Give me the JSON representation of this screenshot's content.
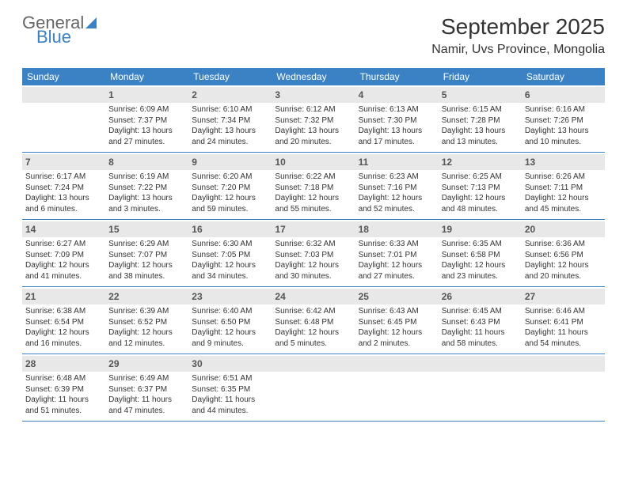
{
  "brand": {
    "name_a": "General",
    "name_b": "Blue"
  },
  "title": "September 2025",
  "location": "Namir, Uvs Province, Mongolia",
  "colors": {
    "accent": "#3b82c4",
    "header_text": "#ffffff",
    "daybar": "#e8e8e8",
    "text": "#333333"
  },
  "day_names": [
    "Sunday",
    "Monday",
    "Tuesday",
    "Wednesday",
    "Thursday",
    "Friday",
    "Saturday"
  ],
  "weeks": [
    [
      null,
      {
        "n": "1",
        "sr": "Sunrise: 6:09 AM",
        "ss": "Sunset: 7:37 PM",
        "dl": "Daylight: 13 hours and 27 minutes."
      },
      {
        "n": "2",
        "sr": "Sunrise: 6:10 AM",
        "ss": "Sunset: 7:34 PM",
        "dl": "Daylight: 13 hours and 24 minutes."
      },
      {
        "n": "3",
        "sr": "Sunrise: 6:12 AM",
        "ss": "Sunset: 7:32 PM",
        "dl": "Daylight: 13 hours and 20 minutes."
      },
      {
        "n": "4",
        "sr": "Sunrise: 6:13 AM",
        "ss": "Sunset: 7:30 PM",
        "dl": "Daylight: 13 hours and 17 minutes."
      },
      {
        "n": "5",
        "sr": "Sunrise: 6:15 AM",
        "ss": "Sunset: 7:28 PM",
        "dl": "Daylight: 13 hours and 13 minutes."
      },
      {
        "n": "6",
        "sr": "Sunrise: 6:16 AM",
        "ss": "Sunset: 7:26 PM",
        "dl": "Daylight: 13 hours and 10 minutes."
      }
    ],
    [
      {
        "n": "7",
        "sr": "Sunrise: 6:17 AM",
        "ss": "Sunset: 7:24 PM",
        "dl": "Daylight: 13 hours and 6 minutes."
      },
      {
        "n": "8",
        "sr": "Sunrise: 6:19 AM",
        "ss": "Sunset: 7:22 PM",
        "dl": "Daylight: 13 hours and 3 minutes."
      },
      {
        "n": "9",
        "sr": "Sunrise: 6:20 AM",
        "ss": "Sunset: 7:20 PM",
        "dl": "Daylight: 12 hours and 59 minutes."
      },
      {
        "n": "10",
        "sr": "Sunrise: 6:22 AM",
        "ss": "Sunset: 7:18 PM",
        "dl": "Daylight: 12 hours and 55 minutes."
      },
      {
        "n": "11",
        "sr": "Sunrise: 6:23 AM",
        "ss": "Sunset: 7:16 PM",
        "dl": "Daylight: 12 hours and 52 minutes."
      },
      {
        "n": "12",
        "sr": "Sunrise: 6:25 AM",
        "ss": "Sunset: 7:13 PM",
        "dl": "Daylight: 12 hours and 48 minutes."
      },
      {
        "n": "13",
        "sr": "Sunrise: 6:26 AM",
        "ss": "Sunset: 7:11 PM",
        "dl": "Daylight: 12 hours and 45 minutes."
      }
    ],
    [
      {
        "n": "14",
        "sr": "Sunrise: 6:27 AM",
        "ss": "Sunset: 7:09 PM",
        "dl": "Daylight: 12 hours and 41 minutes."
      },
      {
        "n": "15",
        "sr": "Sunrise: 6:29 AM",
        "ss": "Sunset: 7:07 PM",
        "dl": "Daylight: 12 hours and 38 minutes."
      },
      {
        "n": "16",
        "sr": "Sunrise: 6:30 AM",
        "ss": "Sunset: 7:05 PM",
        "dl": "Daylight: 12 hours and 34 minutes."
      },
      {
        "n": "17",
        "sr": "Sunrise: 6:32 AM",
        "ss": "Sunset: 7:03 PM",
        "dl": "Daylight: 12 hours and 30 minutes."
      },
      {
        "n": "18",
        "sr": "Sunrise: 6:33 AM",
        "ss": "Sunset: 7:01 PM",
        "dl": "Daylight: 12 hours and 27 minutes."
      },
      {
        "n": "19",
        "sr": "Sunrise: 6:35 AM",
        "ss": "Sunset: 6:58 PM",
        "dl": "Daylight: 12 hours and 23 minutes."
      },
      {
        "n": "20",
        "sr": "Sunrise: 6:36 AM",
        "ss": "Sunset: 6:56 PM",
        "dl": "Daylight: 12 hours and 20 minutes."
      }
    ],
    [
      {
        "n": "21",
        "sr": "Sunrise: 6:38 AM",
        "ss": "Sunset: 6:54 PM",
        "dl": "Daylight: 12 hours and 16 minutes."
      },
      {
        "n": "22",
        "sr": "Sunrise: 6:39 AM",
        "ss": "Sunset: 6:52 PM",
        "dl": "Daylight: 12 hours and 12 minutes."
      },
      {
        "n": "23",
        "sr": "Sunrise: 6:40 AM",
        "ss": "Sunset: 6:50 PM",
        "dl": "Daylight: 12 hours and 9 minutes."
      },
      {
        "n": "24",
        "sr": "Sunrise: 6:42 AM",
        "ss": "Sunset: 6:48 PM",
        "dl": "Daylight: 12 hours and 5 minutes."
      },
      {
        "n": "25",
        "sr": "Sunrise: 6:43 AM",
        "ss": "Sunset: 6:45 PM",
        "dl": "Daylight: 12 hours and 2 minutes."
      },
      {
        "n": "26",
        "sr": "Sunrise: 6:45 AM",
        "ss": "Sunset: 6:43 PM",
        "dl": "Daylight: 11 hours and 58 minutes."
      },
      {
        "n": "27",
        "sr": "Sunrise: 6:46 AM",
        "ss": "Sunset: 6:41 PM",
        "dl": "Daylight: 11 hours and 54 minutes."
      }
    ],
    [
      {
        "n": "28",
        "sr": "Sunrise: 6:48 AM",
        "ss": "Sunset: 6:39 PM",
        "dl": "Daylight: 11 hours and 51 minutes."
      },
      {
        "n": "29",
        "sr": "Sunrise: 6:49 AM",
        "ss": "Sunset: 6:37 PM",
        "dl": "Daylight: 11 hours and 47 minutes."
      },
      {
        "n": "30",
        "sr": "Sunrise: 6:51 AM",
        "ss": "Sunset: 6:35 PM",
        "dl": "Daylight: 11 hours and 44 minutes."
      },
      null,
      null,
      null,
      null
    ]
  ]
}
